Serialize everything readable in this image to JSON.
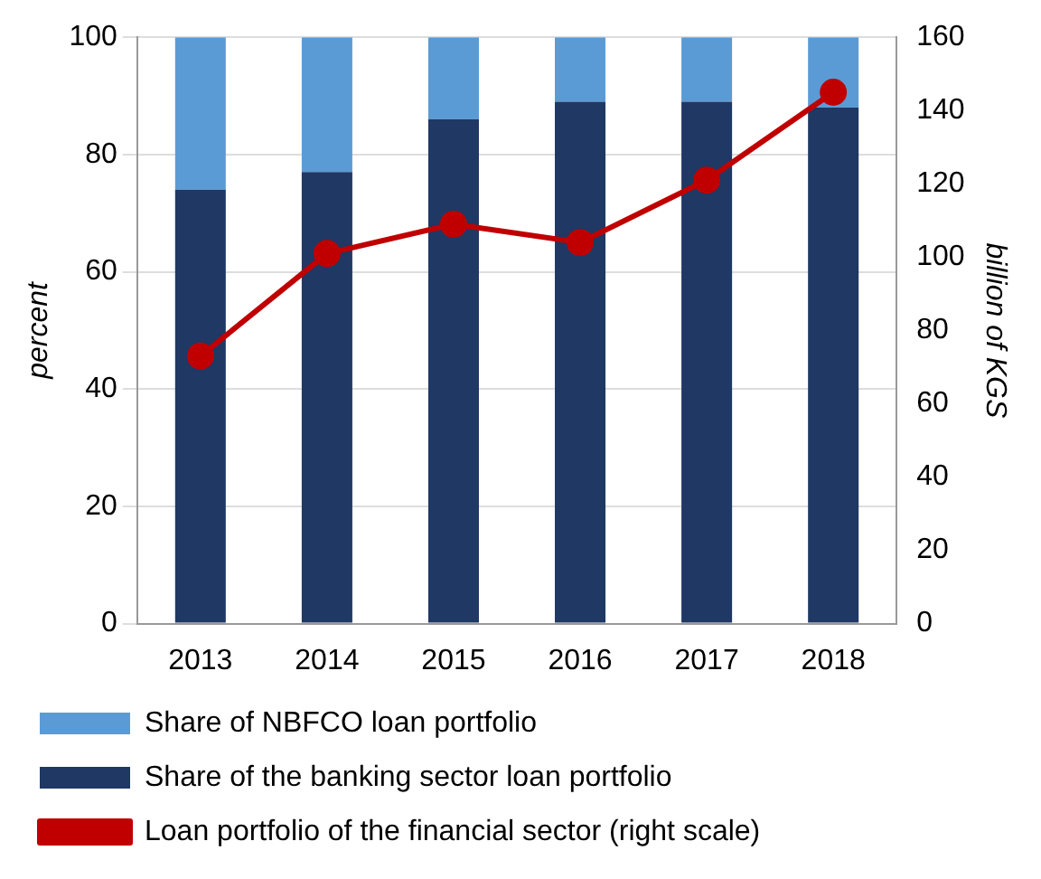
{
  "chart_data": {
    "type": "bar",
    "stacked": true,
    "categories": [
      "2013",
      "2014",
      "2015",
      "2016",
      "2017",
      "2018"
    ],
    "series": [
      {
        "name": "Share of the banking sector loan portfolio",
        "color": "#1f3864",
        "values": [
          74,
          77,
          86,
          89,
          89,
          88
        ]
      },
      {
        "name": "Share of NBFCO loan portfolio",
        "color": "#5b9bd5",
        "values": [
          26,
          23,
          14,
          11,
          11,
          12
        ]
      },
      {
        "name": "Loan portfolio of the financial sector (right scale)",
        "type": "line",
        "axis": "y2",
        "color": "#c00000",
        "values": [
          73,
          101,
          109,
          104,
          121,
          145
        ]
      }
    ],
    "ylabel": "percent",
    "y2label": "billion of KGS",
    "ylim": [
      0,
      100
    ],
    "yticks": [
      0,
      20,
      40,
      60,
      80,
      100
    ],
    "y2lim": [
      0,
      160
    ],
    "y2ticks": [
      0,
      20,
      40,
      60,
      80,
      100,
      120,
      140,
      160
    ],
    "grid": "y",
    "legend": "bottom",
    "marker": "circle"
  }
}
